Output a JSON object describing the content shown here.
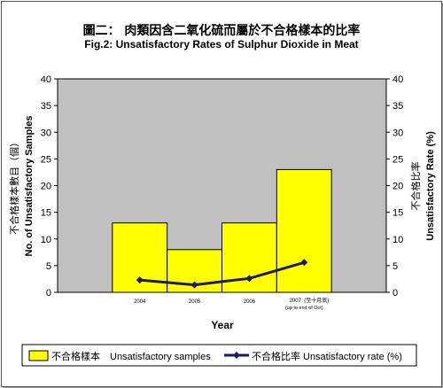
{
  "chart_data": {
    "type": "bar",
    "title": "圖二： 肉類因含二氧化硫而屬於不合格樣本的比率",
    "subtitle": "Fig.2: Unsatisfactory Rates of Sulphur Dioxide in Meat",
    "categories": [
      {
        "label": "2004",
        "sublabel_zh": "",
        "sublabel_en": ""
      },
      {
        "label": "2005",
        "sublabel_zh": "",
        "sublabel_en": ""
      },
      {
        "label": "2006",
        "sublabel_zh": "",
        "sublabel_en": ""
      },
      {
        "label": "2007",
        "sublabel_zh": "(至十月底)",
        "sublabel_en": "(up to end of Oct)"
      }
    ],
    "bar_positions": [
      1,
      2,
      3,
      4
    ],
    "x_slots": 6,
    "series": [
      {
        "name_zh": "不合格樣本",
        "name_en": "Unsatisfactory samples",
        "type": "bar",
        "axis": "left",
        "values": [
          13,
          8,
          13,
          23
        ],
        "color": "#ffff00"
      },
      {
        "name_zh": "不合格比率",
        "name_en": "Unsatisfactory rate (%)",
        "type": "line",
        "axis": "right",
        "values": [
          2.3,
          1.4,
          2.6,
          5.6
        ],
        "color": "#1a1a6e"
      }
    ],
    "xlabel": "Year",
    "ylabel_left_zh": "不合格樣本數目（個）",
    "ylabel_left_en": "No. of Unsatisfactory Samples",
    "ylabel_right_zh": "不合格比率",
    "ylabel_right_en": "Unsatisfactory Rate (%)",
    "ylim_left": [
      0,
      40
    ],
    "ylim_right": [
      0,
      40
    ],
    "yticks": [
      0,
      5,
      10,
      15,
      20,
      25,
      30,
      35,
      40
    ],
    "plot_background": "#c0c0c0",
    "legend_placement": "bottom"
  }
}
